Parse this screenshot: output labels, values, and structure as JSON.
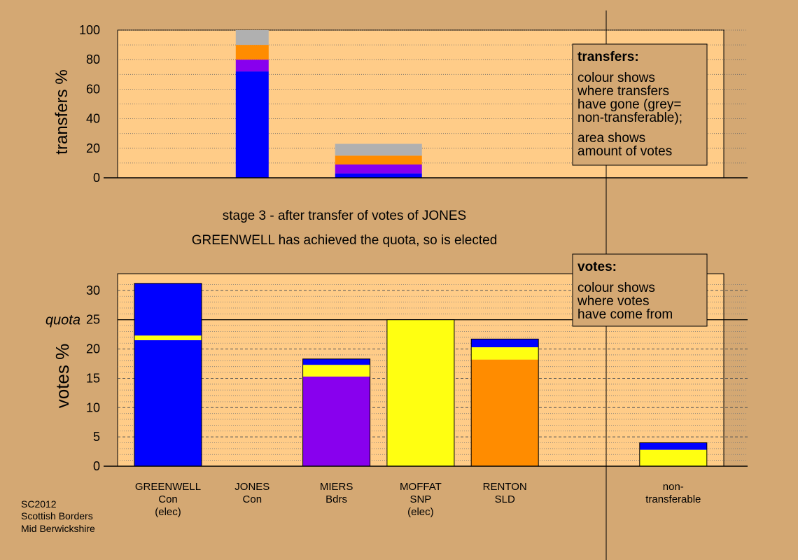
{
  "colors": {
    "background": "#d4a873",
    "plot_area": "#ffcc88",
    "box_fill": "#d4a873",
    "greenwell": "#0000ff",
    "miers": "#8800ee",
    "moffat": "#ffff11",
    "renton": "#ff8c00",
    "nontransferable": "#b0b0b0"
  },
  "stage_text": {
    "line1": "stage 3 - after transfer of votes of JONES",
    "line2": "GREENWELL has achieved the quota, so is elected"
  },
  "transfers_box": {
    "title": "transfers:",
    "para1": [
      "colour shows",
      "where transfers",
      "have gone (grey=",
      "non-transferable);"
    ],
    "para2": [
      "area shows",
      "amount of votes"
    ]
  },
  "votes_box": {
    "title": "votes:",
    "para1": [
      "colour shows",
      "where votes",
      "have come from"
    ]
  },
  "footer": [
    "SC2012",
    "Scottish Borders",
    "Mid Berwickshire"
  ],
  "candidates": [
    {
      "name": "GREENWELL",
      "party": "Con",
      "note": "(elec)"
    },
    {
      "name": "JONES",
      "party": "Con",
      "note": ""
    },
    {
      "name": "MIERS",
      "party": "Bdrs",
      "note": ""
    },
    {
      "name": "MOFFAT",
      "party": "SNP",
      "note": "(elec)"
    },
    {
      "name": "RENTON",
      "party": "SLD",
      "note": ""
    },
    {
      "name": "non-",
      "party": "transferable",
      "note": ""
    }
  ],
  "chart_data": [
    {
      "type": "bar",
      "stacked": true,
      "ylabel": "transfers %",
      "ylim": [
        0,
        100
      ],
      "yticks": [
        0,
        20,
        40,
        60,
        80,
        100
      ],
      "bars": [
        {
          "slot": 1,
          "segments": [
            {
              "to": "GREENWELL",
              "value": 72,
              "color": "#0000ff"
            },
            {
              "to": "MIERS",
              "value": 8,
              "color": "#8800ee"
            },
            {
              "to": "RENTON",
              "value": 10,
              "color": "#ff8c00"
            },
            {
              "to": "non-transferable",
              "value": 10,
              "color": "#b0b0b0"
            }
          ]
        },
        {
          "slot": 2.5,
          "segments": [
            {
              "to": "GREENWELL",
              "value": 3,
              "color": "#0000ff"
            },
            {
              "to": "MIERS",
              "value": 6,
              "color": "#8800ee"
            },
            {
              "to": "RENTON",
              "value": 6,
              "color": "#ff8c00"
            },
            {
              "to": "non-transferable",
              "value": 8,
              "color": "#b0b0b0"
            }
          ]
        }
      ]
    },
    {
      "type": "bar",
      "stacked": true,
      "ylabel": "votes %",
      "ylim": [
        0,
        32
      ],
      "yticks": [
        0,
        5,
        10,
        15,
        20,
        25,
        30
      ],
      "quota": {
        "label": "quota",
        "value": 25
      },
      "bars": [
        {
          "candidate": "GREENWELL",
          "slot": 0,
          "segments": [
            {
              "from": "GREENWELL",
              "value": 21.5,
              "color": "#0000ff"
            },
            {
              "from": "MOFFAT",
              "value": 0.8,
              "color": "#ffff11"
            },
            {
              "from": "GREENWELL",
              "value": 8.9,
              "color": "#0000ff"
            }
          ]
        },
        {
          "candidate": "JONES",
          "slot": 1,
          "segments": []
        },
        {
          "candidate": "MIERS",
          "slot": 2,
          "segments": [
            {
              "from": "MIERS",
              "value": 15.3,
              "color": "#8800ee"
            },
            {
              "from": "MOFFAT",
              "value": 2.0,
              "color": "#ffff11"
            },
            {
              "from": "GREENWELL",
              "value": 1.0,
              "color": "#0000ff"
            }
          ]
        },
        {
          "candidate": "MOFFAT",
          "slot": 3,
          "segments": [
            {
              "from": "MOFFAT",
              "value": 25.0,
              "color": "#ffff11"
            }
          ]
        },
        {
          "candidate": "RENTON",
          "slot": 4,
          "segments": [
            {
              "from": "RENTON",
              "value": 18.2,
              "color": "#ff8c00"
            },
            {
              "from": "MOFFAT",
              "value": 2.1,
              "color": "#ffff11"
            },
            {
              "from": "GREENWELL",
              "value": 1.4,
              "color": "#0000ff"
            }
          ]
        },
        {
          "candidate": "non-transferable",
          "slot": 6,
          "segments": [
            {
              "from": "MOFFAT",
              "value": 2.8,
              "color": "#ffff11"
            },
            {
              "from": "GREENWELL",
              "value": 1.2,
              "color": "#0000ff"
            }
          ]
        }
      ]
    }
  ]
}
